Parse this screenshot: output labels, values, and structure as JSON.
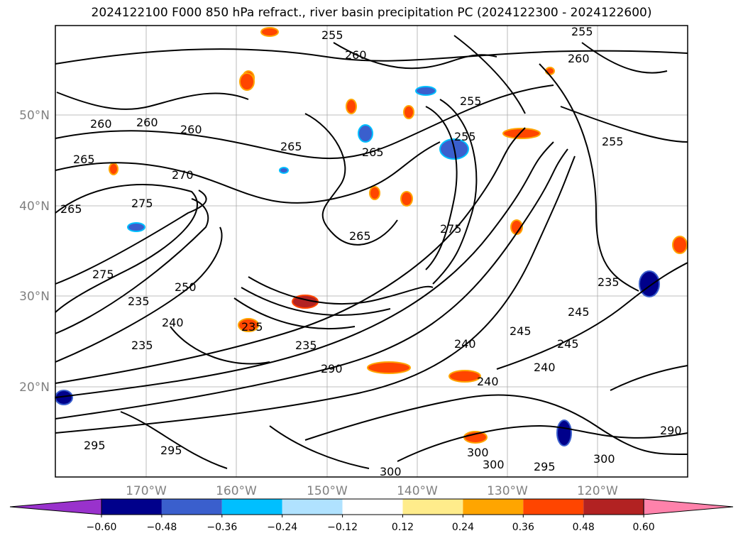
{
  "title": "2024122100 F000 850 hPa refract., river basin precipitation PC (2024122300 - 2024122600)",
  "latitudes": [
    "50°N",
    "40°N",
    "30°N",
    "20°N"
  ],
  "longitudes": [
    "170°W",
    "160°W",
    "150°W",
    "140°W",
    "130°W",
    "120°W"
  ],
  "colorbar": {
    "colors": [
      "#9932cc",
      "#00008b",
      "#3a5fcd",
      "#00bfff",
      "#b0e2ff",
      "#ffffff",
      "#ffec8b",
      "#ffa500",
      "#ff4500",
      "#b22222",
      "#ff82ab"
    ],
    "ticks": [
      "−0.60",
      "−0.48",
      "−0.36",
      "−0.24",
      "−0.12",
      "0.12",
      "0.24",
      "0.36",
      "0.48",
      "0.60"
    ]
  },
  "contour_labels": [
    "255",
    "260",
    "265",
    "270",
    "275",
    "235",
    "240",
    "245",
    "250",
    "290",
    "295",
    "300"
  ]
}
